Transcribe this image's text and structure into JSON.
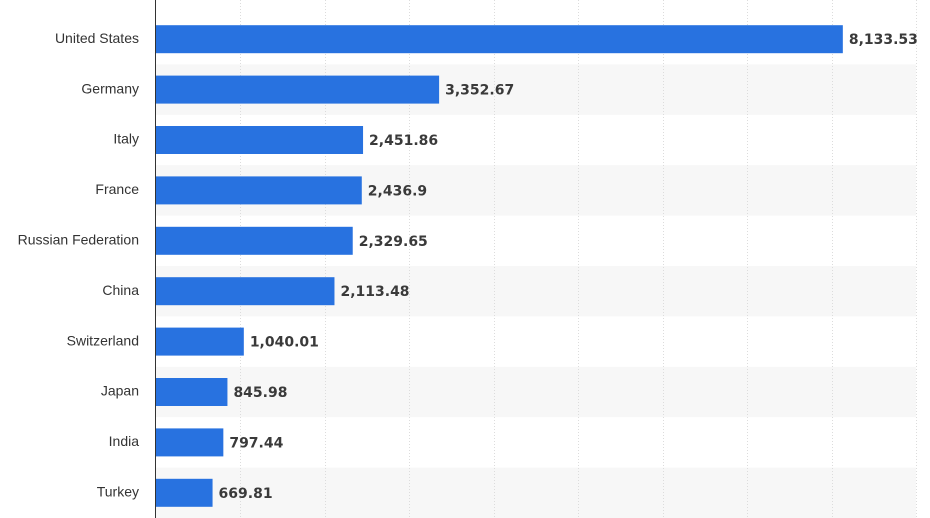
{
  "chart_data": {
    "type": "bar",
    "orientation": "horizontal",
    "categories": [
      "United States",
      "Germany",
      "Italy",
      "France",
      "Russian Federation",
      "China",
      "Switzerland",
      "Japan",
      "India",
      "Turkey"
    ],
    "values": [
      8133.53,
      3352.67,
      2451.86,
      2436.9,
      2329.65,
      2113.48,
      1040.01,
      845.98,
      797.44,
      669.81
    ],
    "value_labels": [
      "8,133.53",
      "3,352.67",
      "2,451.86",
      "2,436.9",
      "2,329.65",
      "2,113.48",
      "1,040.01",
      "845.98",
      "797.44",
      "669.81"
    ],
    "title": "",
    "xlabel": "",
    "ylabel": "",
    "xlim": [
      0,
      9000
    ],
    "grid": true,
    "bar_color": "#2872e0",
    "band_color": "#f7f7f7",
    "grid_color": "#dcdcdc",
    "axis_color": "#333333"
  }
}
